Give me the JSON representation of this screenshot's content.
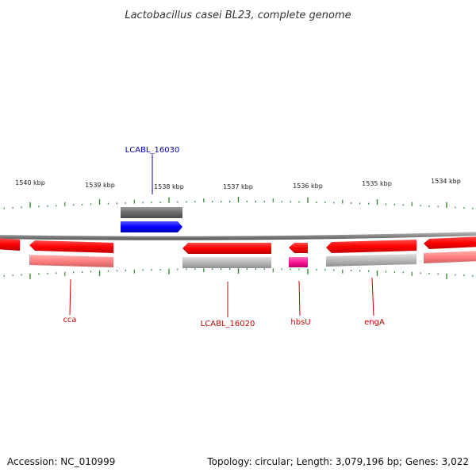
{
  "title": "Lactobacillus casei BL23, complete genome",
  "scale": {
    "unit": "kbp",
    "labels": [
      "1540 kbp",
      "1539 kbp",
      "1538 kbp",
      "1537 kbp",
      "1536 kbp",
      "1535 kbp",
      "1534 kbp"
    ]
  },
  "genes": [
    {
      "name": "LCABL_16030",
      "color": "#0000cc",
      "strand": "forward",
      "track": "feature"
    },
    {
      "name": "cca",
      "color": "#cc0000",
      "strand": "reverse",
      "track": "feature"
    },
    {
      "name": "LCABL_16020",
      "color": "#cc0000",
      "strand": "reverse",
      "track": "feature"
    },
    {
      "name": "hbsU",
      "color": "#cc0000",
      "strand": "reverse",
      "track": "feature"
    },
    {
      "name": "engA",
      "color": "#cc0000",
      "strand": "reverse",
      "track": "feature"
    }
  ],
  "colors": {
    "cds_reverse": "#ff0000",
    "cds_forward": "#0000ff",
    "gene_blocks": "#ff8080",
    "gray_blocks": "#b0b0b0",
    "magenta_block": "#ff1493",
    "backbone": "#888888",
    "ticks": "#2e8b2e",
    "forward_label": "#0000aa",
    "reverse_label": "#cc0000"
  },
  "footer": {
    "accession": "Accession: NC_010999",
    "summary": "Topology: circular; Length: 3,079,196 bp; Genes: 3,022"
  }
}
